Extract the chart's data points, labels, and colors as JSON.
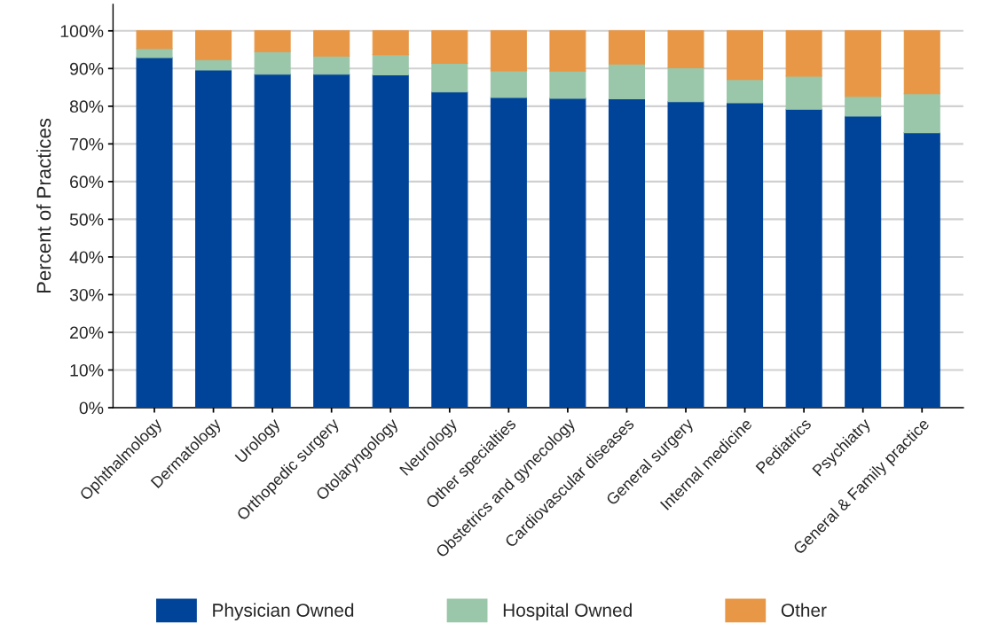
{
  "chart_data": {
    "type": "bar",
    "stacked": true,
    "ylabel": "Percent of Practices",
    "categories": [
      "Ophthalmology",
      "Dermatology",
      "Urology",
      "Orthopedic surgery",
      "Otolaryngology",
      "Neurology",
      "Other specialties",
      "Obstetrics and gynecology",
      "Cardiovascular diseases",
      "General surgery",
      "Internal medicine",
      "Pediatrics",
      "Psychiatry",
      "General & Family practice"
    ],
    "series": [
      {
        "name": "Physician Owned",
        "color": "#00449a",
        "values": [
          92.9,
          89.6,
          88.5,
          88.5,
          88.3,
          83.8,
          82.3,
          82.1,
          82.0,
          81.2,
          80.9,
          79.2,
          77.4,
          73.0
        ]
      },
      {
        "name": "Hospital Owned",
        "color": "#9ac6a9",
        "values": [
          2.4,
          2.8,
          6.0,
          4.8,
          5.4,
          7.6,
          7.1,
          7.2,
          9.2,
          9.0,
          6.2,
          8.8,
          5.2,
          10.3
        ]
      },
      {
        "name": "Other",
        "color": "#e89746",
        "values": [
          4.7,
          7.6,
          5.5,
          6.7,
          6.3,
          8.6,
          10.6,
          10.7,
          8.8,
          9.8,
          12.9,
          12.0,
          17.4,
          16.7
        ]
      }
    ],
    "ylim": [
      0,
      107
    ],
    "yticks": [
      {
        "value": 0,
        "label": "0%"
      },
      {
        "value": 10,
        "label": "10%"
      },
      {
        "value": 20,
        "label": "20%"
      },
      {
        "value": 30,
        "label": "30%"
      },
      {
        "value": 40,
        "label": "40%"
      },
      {
        "value": 50,
        "label": "50%"
      },
      {
        "value": 60,
        "label": "60%"
      },
      {
        "value": 70,
        "label": "70%"
      },
      {
        "value": 80,
        "label": "80%"
      },
      {
        "value": 90,
        "label": "90%"
      },
      {
        "value": 100,
        "label": "100%"
      }
    ],
    "grid": "y",
    "legend": "bottom"
  }
}
